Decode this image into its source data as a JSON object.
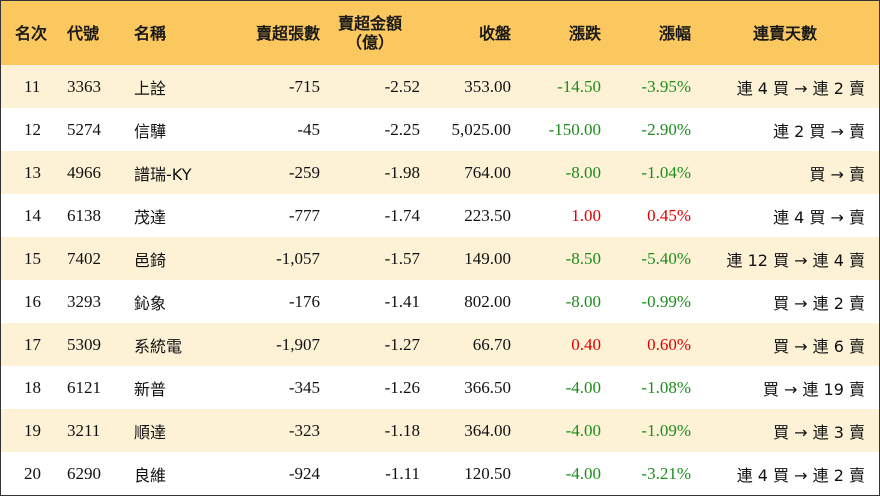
{
  "headers": {
    "rank": "名次",
    "code": "代號",
    "name": "名稱",
    "net_sell_lots": "賣超張數",
    "net_sell_amount_line1": "賣超金額",
    "net_sell_amount_line2": "（億）",
    "close": "收盤",
    "change": "漲跌",
    "change_pct": "漲幅",
    "streak": "連賣天數"
  },
  "colors": {
    "header_bg": "#fbc75f",
    "row_stripe": "#fdf2d6",
    "down": "#1e8c1e",
    "up": "#e00000"
  },
  "rows": [
    {
      "rank": "11",
      "code": "3363",
      "name": "上詮",
      "lots": "-715",
      "amount": "-2.52",
      "close": "353.00",
      "change": "-14.50",
      "pct": "-3.95%",
      "streak": "連 4 買 → 連 2 賣",
      "dir": "down"
    },
    {
      "rank": "12",
      "code": "5274",
      "name": "信驊",
      "lots": "-45",
      "amount": "-2.25",
      "close": "5,025.00",
      "change": "-150.00",
      "pct": "-2.90%",
      "streak": "連 2 買 → 賣",
      "dir": "down"
    },
    {
      "rank": "13",
      "code": "4966",
      "name": "譜瑞-KY",
      "lots": "-259",
      "amount": "-1.98",
      "close": "764.00",
      "change": "-8.00",
      "pct": "-1.04%",
      "streak": "買 → 賣",
      "dir": "down"
    },
    {
      "rank": "14",
      "code": "6138",
      "name": "茂達",
      "lots": "-777",
      "amount": "-1.74",
      "close": "223.50",
      "change": "1.00",
      "pct": "0.45%",
      "streak": "連 4 買 → 賣",
      "dir": "up"
    },
    {
      "rank": "15",
      "code": "7402",
      "name": "邑錡",
      "lots": "-1,057",
      "amount": "-1.57",
      "close": "149.00",
      "change": "-8.50",
      "pct": "-5.40%",
      "streak": "連 12 買 → 連 4 賣",
      "dir": "down"
    },
    {
      "rank": "16",
      "code": "3293",
      "name": "鈊象",
      "lots": "-176",
      "amount": "-1.41",
      "close": "802.00",
      "change": "-8.00",
      "pct": "-0.99%",
      "streak": "買 → 連 2 賣",
      "dir": "down"
    },
    {
      "rank": "17",
      "code": "5309",
      "name": "系統電",
      "lots": "-1,907",
      "amount": "-1.27",
      "close": "66.70",
      "change": "0.40",
      "pct": "0.60%",
      "streak": "買 → 連 6 賣",
      "dir": "up"
    },
    {
      "rank": "18",
      "code": "6121",
      "name": "新普",
      "lots": "-345",
      "amount": "-1.26",
      "close": "366.50",
      "change": "-4.00",
      "pct": "-1.08%",
      "streak": "買 → 連 19 賣",
      "dir": "down"
    },
    {
      "rank": "19",
      "code": "3211",
      "name": "順達",
      "lots": "-323",
      "amount": "-1.18",
      "close": "364.00",
      "change": "-4.00",
      "pct": "-1.09%",
      "streak": "買 → 連 3 賣",
      "dir": "down"
    },
    {
      "rank": "20",
      "code": "6290",
      "name": "良維",
      "lots": "-924",
      "amount": "-1.11",
      "close": "120.50",
      "change": "-4.00",
      "pct": "-3.21%",
      "streak": "連 4 買 → 連 2 賣",
      "dir": "down"
    }
  ]
}
